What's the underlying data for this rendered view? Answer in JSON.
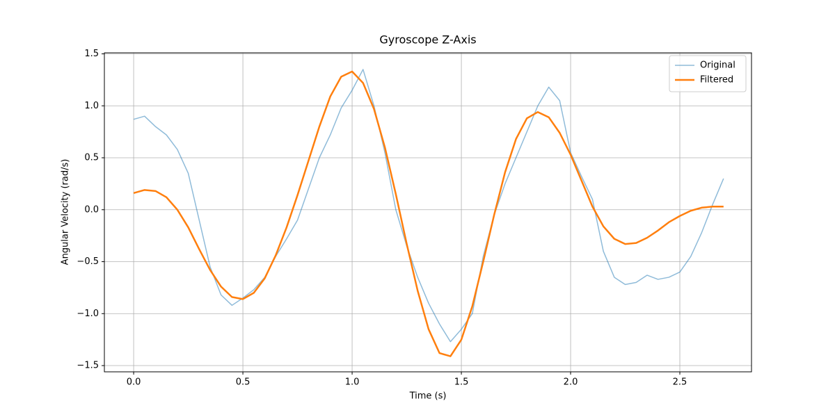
{
  "chart_data": {
    "type": "line",
    "title": "Gyroscope Z-Axis",
    "x_label": "Time (s)",
    "y_label": "Angular Velocity (rad/s)",
    "x": [
      0,
      0.05,
      0.1,
      0.15,
      0.2,
      0.25,
      0.3,
      0.35,
      0.4,
      0.45,
      0.5,
      0.55,
      0.6,
      0.65,
      0.7,
      0.75,
      0.8,
      0.85,
      0.9,
      0.95,
      1.0,
      1.05,
      1.1,
      1.15,
      1.2,
      1.25,
      1.3,
      1.35,
      1.4,
      1.45,
      1.5,
      1.55,
      1.6,
      1.65,
      1.7,
      1.75,
      1.8,
      1.85,
      1.9,
      1.95,
      2.0,
      2.05,
      2.1,
      2.15,
      2.2,
      2.25,
      2.3,
      2.35,
      2.4,
      2.45,
      2.5,
      2.55,
      2.6,
      2.65,
      2.7
    ],
    "series": [
      {
        "name": "Original",
        "color": "#1f77b4",
        "opacity": 0.5,
        "width": 1.5,
        "values": [
          0.87,
          0.9,
          0.8,
          0.72,
          0.58,
          0.35,
          -0.1,
          -0.55,
          -0.82,
          -0.92,
          -0.85,
          -0.77,
          -0.65,
          -0.45,
          -0.28,
          -0.1,
          0.2,
          0.5,
          0.72,
          0.98,
          1.15,
          1.35,
          1.0,
          0.55,
          0.0,
          -0.35,
          -0.65,
          -0.9,
          -1.1,
          -1.27,
          -1.15,
          -1.0,
          -0.45,
          -0.05,
          0.25,
          0.5,
          0.75,
          1.0,
          1.18,
          1.05,
          0.55,
          0.32,
          0.1,
          -0.4,
          -0.65,
          -0.72,
          -0.7,
          -0.63,
          -0.67,
          -0.65,
          -0.6,
          -0.45,
          -0.22,
          0.05,
          0.3
        ]
      },
      {
        "name": "Filtered",
        "color": "#ff7f0e",
        "opacity": 1,
        "width": 2.5,
        "values": [
          0.16,
          0.19,
          0.18,
          0.12,
          0.0,
          -0.17,
          -0.38,
          -0.58,
          -0.74,
          -0.84,
          -0.86,
          -0.8,
          -0.66,
          -0.44,
          -0.17,
          0.14,
          0.47,
          0.8,
          1.09,
          1.28,
          1.33,
          1.22,
          0.97,
          0.6,
          0.15,
          -0.33,
          -0.78,
          -1.15,
          -1.38,
          -1.41,
          -1.25,
          -0.93,
          -0.5,
          -0.05,
          0.36,
          0.68,
          0.88,
          0.94,
          0.89,
          0.74,
          0.53,
          0.28,
          0.03,
          -0.16,
          -0.28,
          -0.33,
          -0.32,
          -0.27,
          -0.2,
          -0.12,
          -0.06,
          -0.01,
          0.02,
          0.03,
          0.03
        ]
      }
    ],
    "xlim": [
      -0.134,
      2.828
    ],
    "ylim": [
      -1.56,
      1.51
    ],
    "xticks": [
      {
        "value": 0,
        "label": "0.0"
      },
      {
        "value": 0.5,
        "label": "0.5"
      },
      {
        "value": 1,
        "label": "1.0"
      },
      {
        "value": 1.5,
        "label": "1.5"
      },
      {
        "value": 2,
        "label": "2.0"
      },
      {
        "value": 2.5,
        "label": "2.5"
      }
    ],
    "yticks": [
      {
        "value": -1.5,
        "label": "−1.5"
      },
      {
        "value": -1,
        "label": "−1.0"
      },
      {
        "value": -0.5,
        "label": "−0.5"
      },
      {
        "value": 0,
        "label": "0.0"
      },
      {
        "value": 0.5,
        "label": "0.5"
      },
      {
        "value": 1,
        "label": "1.0"
      },
      {
        "value": 1.5,
        "label": "1.5"
      }
    ],
    "grid": true,
    "legend": "upper right"
  }
}
